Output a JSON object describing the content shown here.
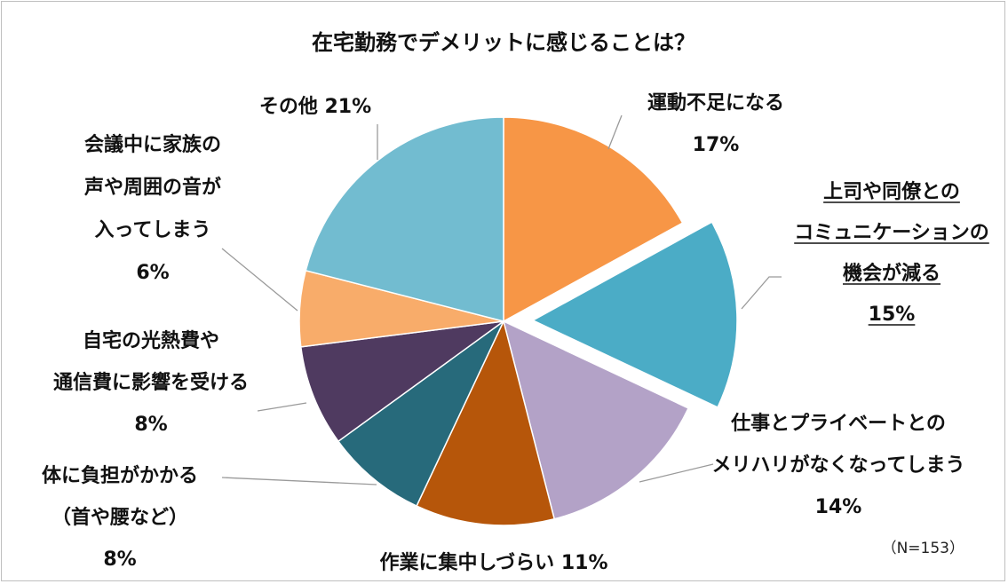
{
  "chart_data": {
    "type": "pie",
    "title": "在宅勤務でデメリットに感じることは？",
    "note": "（N=153）",
    "slices": [
      {
        "lines": [
          "運動不足になる",
          "17%"
        ],
        "value": 17,
        "color": "#F79646",
        "exploded": false,
        "underlined": false
      },
      {
        "lines": [
          "上司や同僚との",
          "コミュニケーションの",
          "機会が減る",
          "15%"
        ],
        "value": 15,
        "color": "#4BACC6",
        "exploded": true,
        "underlined": true
      },
      {
        "lines": [
          "仕事とプライベートとの",
          "メリハリがなくなってしまう",
          "14%"
        ],
        "value": 14,
        "color": "#B3A2C7",
        "exploded": false,
        "underlined": false
      },
      {
        "lines": [
          "作業に集中しづらい 11%"
        ],
        "value": 11,
        "color": "#B6560A",
        "exploded": false,
        "underlined": false
      },
      {
        "lines": [
          "体に負担がかかる",
          "（首や腰など）",
          "8%"
        ],
        "value": 8,
        "color": "#276A7B",
        "exploded": false,
        "underlined": false
      },
      {
        "lines": [
          "自宅の光熱費や",
          "通信費に影響を受ける",
          "8%"
        ],
        "value": 8,
        "color": "#4F3A60",
        "exploded": false,
        "underlined": false
      },
      {
        "lines": [
          "会議中に家族の",
          "声や周囲の音が",
          "入ってしまう",
          "6%"
        ],
        "value": 6,
        "color": "#F8AC6A",
        "exploded": false,
        "underlined": false
      },
      {
        "lines": [
          "その他 21%"
        ],
        "value": 21,
        "color": "#72BCD0",
        "exploded": false,
        "underlined": false
      }
    ]
  }
}
